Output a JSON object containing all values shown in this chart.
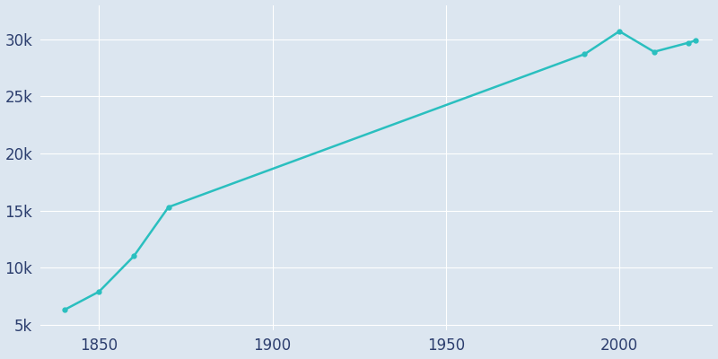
{
  "years": [
    1840,
    1850,
    1860,
    1870,
    1990,
    2000,
    2010,
    2020,
    2022
  ],
  "population": [
    6300,
    7900,
    11000,
    15300,
    28700,
    30700,
    28900,
    29700,
    29900
  ],
  "line_color": "#2abfbf",
  "marker": "o",
  "marker_size": 3.5,
  "line_width": 1.8,
  "background_color": "#dce6f0",
  "grid_color": "#ffffff",
  "tick_color": "#2c3e6e",
  "ylim": [
    4500,
    33000
  ],
  "xlim": [
    1833,
    2027
  ],
  "yticks": [
    5000,
    10000,
    15000,
    20000,
    25000,
    30000
  ],
  "ytick_labels": [
    "5k",
    "10k",
    "15k",
    "20k",
    "25k",
    "30k"
  ],
  "xticks": [
    1850,
    1900,
    1950,
    2000
  ],
  "tick_fontsize": 12
}
